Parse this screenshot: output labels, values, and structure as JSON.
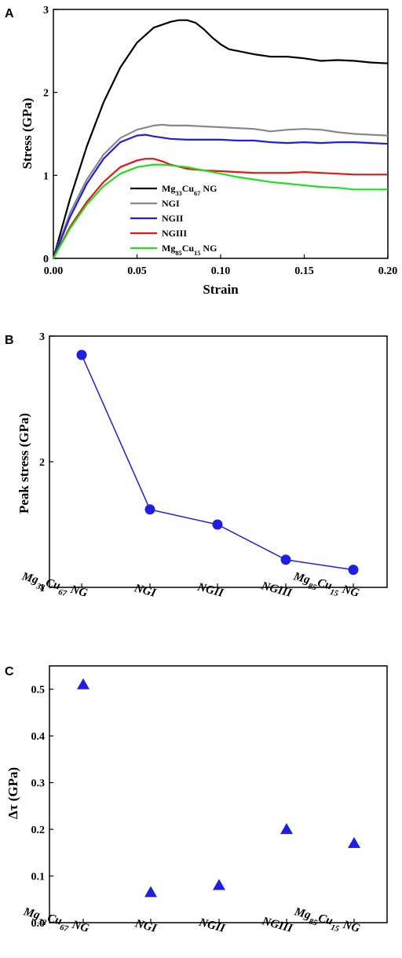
{
  "chart_data": [
    {
      "panel": "A",
      "type": "line",
      "xlabel": "Strain",
      "ylabel": "Stress (GPa)",
      "xlim": [
        0.0,
        0.2
      ],
      "ylim": [
        0,
        3
      ],
      "xticks": [
        "0.00",
        "0.05",
        "0.10",
        "0.15",
        "0.20"
      ],
      "yticks": [
        "0",
        "1",
        "2",
        "3"
      ],
      "legend_position": "bottom-center",
      "series": [
        {
          "name": "Mg33Cu67 NG",
          "name_parts": [
            [
              "Mg",
              false
            ],
            [
              "33",
              true
            ],
            [
              "Cu",
              false
            ],
            [
              "67",
              true
            ],
            [
              " NG",
              false
            ]
          ],
          "color": "#000000",
          "x": [
            0,
            0.01,
            0.02,
            0.03,
            0.04,
            0.05,
            0.06,
            0.07,
            0.075,
            0.08,
            0.085,
            0.09,
            0.095,
            0.1,
            0.105,
            0.11,
            0.12,
            0.13,
            0.14,
            0.15,
            0.16,
            0.17,
            0.18,
            0.19,
            0.2
          ],
          "y": [
            0,
            0.72,
            1.35,
            1.88,
            2.3,
            2.6,
            2.78,
            2.85,
            2.87,
            2.87,
            2.84,
            2.76,
            2.66,
            2.58,
            2.52,
            2.5,
            2.46,
            2.43,
            2.43,
            2.41,
            2.38,
            2.39,
            2.38,
            2.36,
            2.35
          ]
        },
        {
          "name": "NGI",
          "name_parts": [
            [
              "NGI",
              false
            ]
          ],
          "color": "#888888",
          "x": [
            0,
            0.01,
            0.02,
            0.03,
            0.04,
            0.05,
            0.06,
            0.065,
            0.07,
            0.08,
            0.09,
            0.1,
            0.11,
            0.12,
            0.13,
            0.14,
            0.15,
            0.16,
            0.17,
            0.18,
            0.19,
            0.2
          ],
          "y": [
            0,
            0.55,
            0.95,
            1.25,
            1.45,
            1.55,
            1.6,
            1.61,
            1.6,
            1.6,
            1.59,
            1.58,
            1.57,
            1.56,
            1.53,
            1.55,
            1.56,
            1.55,
            1.52,
            1.5,
            1.49,
            1.48
          ]
        },
        {
          "name": "NGII",
          "name_parts": [
            [
              "NGII",
              false
            ]
          ],
          "color": "#1f1fdd",
          "x": [
            0,
            0.01,
            0.02,
            0.03,
            0.04,
            0.05,
            0.055,
            0.06,
            0.07,
            0.08,
            0.09,
            0.1,
            0.11,
            0.12,
            0.13,
            0.14,
            0.15,
            0.16,
            0.17,
            0.18,
            0.19,
            0.2
          ],
          "y": [
            0,
            0.5,
            0.9,
            1.2,
            1.4,
            1.48,
            1.49,
            1.47,
            1.44,
            1.43,
            1.43,
            1.43,
            1.42,
            1.42,
            1.4,
            1.39,
            1.4,
            1.39,
            1.4,
            1.4,
            1.39,
            1.38
          ]
        },
        {
          "name": "NGIII",
          "name_parts": [
            [
              "NGIII",
              false
            ]
          ],
          "color": "#e81414",
          "x": [
            0,
            0.01,
            0.02,
            0.03,
            0.04,
            0.05,
            0.055,
            0.06,
            0.065,
            0.07,
            0.08,
            0.09,
            0.1,
            0.11,
            0.12,
            0.13,
            0.14,
            0.15,
            0.16,
            0.17,
            0.18,
            0.19,
            0.2
          ],
          "y": [
            0,
            0.38,
            0.68,
            0.92,
            1.1,
            1.18,
            1.2,
            1.2,
            1.17,
            1.13,
            1.08,
            1.06,
            1.05,
            1.04,
            1.03,
            1.03,
            1.03,
            1.04,
            1.03,
            1.02,
            1.01,
            1.01,
            1.01
          ]
        },
        {
          "name": "Mg85Cu15 NG",
          "name_parts": [
            [
              "Mg",
              false
            ],
            [
              "85",
              true
            ],
            [
              "Cu",
              false
            ],
            [
              "15",
              true
            ],
            [
              " NG",
              false
            ]
          ],
          "color": "#22dd22",
          "x": [
            0,
            0.01,
            0.02,
            0.03,
            0.04,
            0.05,
            0.06,
            0.065,
            0.07,
            0.08,
            0.09,
            0.1,
            0.11,
            0.12,
            0.13,
            0.14,
            0.15,
            0.16,
            0.17,
            0.18,
            0.19,
            0.2
          ],
          "y": [
            0,
            0.36,
            0.65,
            0.87,
            1.02,
            1.1,
            1.13,
            1.13,
            1.12,
            1.1,
            1.06,
            1.02,
            0.98,
            0.95,
            0.92,
            0.9,
            0.88,
            0.86,
            0.85,
            0.83,
            0.83,
            0.83
          ]
        }
      ]
    },
    {
      "panel": "B",
      "type": "line",
      "ylabel": "Peak stress (GPa)",
      "ylim": [
        1,
        3
      ],
      "yticks": [
        "1",
        "2",
        "3"
      ],
      "color": "#1f1fdd",
      "categories": [
        [
          [
            "Mg",
            false
          ],
          [
            "33",
            true
          ],
          [
            "Cu",
            false
          ],
          [
            "67",
            true
          ],
          [
            " NG",
            false
          ]
        ],
        [
          [
            "NGI",
            false
          ]
        ],
        [
          [
            "NGII",
            false
          ]
        ],
        [
          [
            "NGIII",
            false
          ]
        ],
        [
          [
            "Mg",
            false
          ],
          [
            "85",
            true
          ],
          [
            "Cu",
            false
          ],
          [
            "15",
            true
          ],
          [
            " NG",
            false
          ]
        ]
      ],
      "values": [
        2.85,
        1.62,
        1.5,
        1.22,
        1.14
      ]
    },
    {
      "panel": "C",
      "type": "scatter",
      "ylabel": "Δτ (GPa)",
      "ylim": [
        0,
        0.55
      ],
      "yticks": [
        "0.0",
        "0.1",
        "0.2",
        "0.3",
        "0.4",
        "0.5"
      ],
      "color": "#1f1fdd",
      "categories": [
        [
          [
            "Mg",
            false
          ],
          [
            "33",
            true
          ],
          [
            "Cu",
            false
          ],
          [
            "67",
            true
          ],
          [
            " NG",
            false
          ]
        ],
        [
          [
            "NGI",
            false
          ]
        ],
        [
          [
            "NGII",
            false
          ]
        ],
        [
          [
            "NGIII",
            false
          ]
        ],
        [
          [
            "Mg",
            false
          ],
          [
            "85",
            true
          ],
          [
            "Cu",
            false
          ],
          [
            "15",
            true
          ],
          [
            " NG",
            false
          ]
        ]
      ],
      "values": [
        0.51,
        0.065,
        0.08,
        0.2,
        0.17
      ]
    }
  ]
}
